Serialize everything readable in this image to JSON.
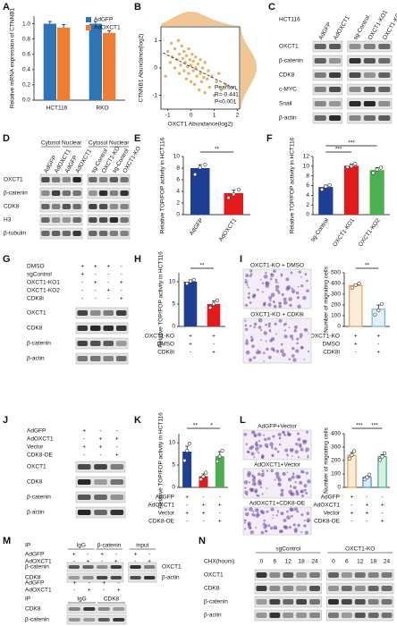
{
  "chart_data": [
    {
      "type": "bar",
      "panel": "A",
      "ylabel": "Relative mRNA expression of CTNNB1",
      "categories": [
        "HCT116",
        "RKO"
      ],
      "series": [
        {
          "name": "AdGFP",
          "color": "#2e75b6",
          "values": [
            1.0,
            1.0
          ],
          "errors": [
            0.03,
            0.03
          ]
        },
        {
          "name": "AdOXCT1",
          "color": "#ed7d31",
          "values": [
            0.95,
            0.88
          ],
          "errors": [
            0.04,
            0.03
          ]
        }
      ],
      "ylim": [
        0,
        1.1
      ],
      "yticks": [
        {
          "value": 0,
          "label": "0.0"
        },
        {
          "value": 0.2,
          "label": "0.2"
        },
        {
          "value": 0.4,
          "label": "0.4"
        },
        {
          "value": 0.6,
          "label": "0.6"
        },
        {
          "value": 0.8,
          "label": "0.8"
        },
        {
          "value": 1,
          "label": "1.0"
        }
      ]
    },
    {
      "type": "scatter",
      "panel": "B",
      "xlabel": "OXCT1 Abundance(log2)",
      "ylabel": "CTNNB1 Abundance(log2)",
      "color": "#e9a04a",
      "x": [
        -1.0,
        -0.9,
        -0.85,
        -0.8,
        -0.7,
        -0.7,
        -0.6,
        -0.55,
        -0.5,
        -0.5,
        -0.45,
        -0.4,
        -0.35,
        -0.3,
        -0.3,
        -0.25,
        -0.2,
        -0.2,
        -0.15,
        -0.1,
        -0.1,
        -0.05,
        0.0,
        0.0,
        0.05,
        0.1,
        0.1,
        0.15,
        0.2,
        0.2,
        0.25,
        0.3,
        0.35,
        0.4,
        0.4,
        0.45,
        0.5,
        0.55,
        0.6,
        0.6,
        0.7,
        0.75,
        0.8,
        0.9,
        1.0,
        1.1,
        1.2,
        1.3,
        1.5,
        -1.1
      ],
      "y": [
        0.6,
        0.2,
        0.9,
        0.4,
        0.0,
        0.7,
        0.3,
        1.0,
        -0.2,
        0.5,
        0.1,
        0.8,
        0.35,
        -0.1,
        0.6,
        0.2,
        -0.4,
        0.45,
        0.05,
        0.7,
        -0.2,
        0.3,
        -0.5,
        0.1,
        0.5,
        -0.1,
        0.25,
        -0.6,
        0.0,
        0.4,
        -0.3,
        0.15,
        -0.8,
        -0.2,
        0.3,
        -0.5,
        0.0,
        -0.35,
        -0.9,
        0.2,
        -0.4,
        -0.1,
        -0.7,
        -0.3,
        -1.0,
        -0.5,
        -0.2,
        -0.8,
        -0.6,
        -0.3
      ],
      "fit": {
        "x": [
          -1.2,
          2.0
        ],
        "y": [
          0.55,
          -0.8
        ]
      },
      "xlim": [
        -1.3,
        2.1
      ],
      "ylim": [
        -1.5,
        1.5
      ],
      "xticks": [
        -1,
        0,
        1,
        2
      ],
      "yticks": [
        -1,
        0,
        1
      ],
      "annotations": [
        "Pearson",
        "R=-0.441",
        "P<0.001"
      ]
    },
    {
      "type": "bar",
      "panel": "E",
      "ylabel": "Relative TOP/FOP activity in HCT116",
      "categories": [
        "AdGFP",
        "AdOXCT1"
      ],
      "values": [
        8.0,
        3.7
      ],
      "errors": [
        0.6,
        0.5
      ],
      "points": [
        [
          6.9,
          8.1,
          8.6
        ],
        [
          2.9,
          3.5,
          4.3
        ]
      ],
      "colors": [
        "#1f3f95",
        "#e31a1c"
      ],
      "ylim": [
        0,
        10
      ],
      "yticks": [
        0,
        2,
        4,
        6,
        8,
        10
      ],
      "significance": [
        "**"
      ]
    },
    {
      "type": "bar",
      "panel": "F",
      "ylabel": "Relative TOP/FOP activity in HCT116",
      "categories": [
        "sg-Control",
        "OXCT1-KO1",
        "OXCT1-KO2"
      ],
      "values": [
        5.7,
        10.1,
        9.2
      ],
      "errors": [
        0.4,
        0.3,
        0.5
      ],
      "points": [
        [
          5.2,
          5.8,
          6.1
        ],
        [
          9.8,
          10.0,
          10.5
        ],
        [
          8.6,
          9.3,
          9.7
        ]
      ],
      "colors": [
        "#1f3f95",
        "#e31a1c",
        "#4caf50"
      ],
      "ylim": [
        0,
        12
      ],
      "yticks": [
        0,
        2,
        4,
        6,
        8,
        10,
        12
      ],
      "significance": [
        "***",
        "***"
      ]
    },
    {
      "type": "bar",
      "panel": "H",
      "ylabel": "Relative TOP/FOP activity in HCT116",
      "values": [
        10.0,
        5.0
      ],
      "errors": [
        0.4,
        0.7
      ],
      "points": [
        [
          9.6,
          10.1,
          10.4
        ],
        [
          4.2,
          5.0,
          5.8
        ]
      ],
      "colors": [
        "#1f3f95",
        "#e31a1c"
      ],
      "ylim": [
        0,
        12
      ],
      "yticks": [
        0,
        5,
        10
      ],
      "significance": [
        "**"
      ],
      "conditions": [
        {
          "name": "OXCT1-KO",
          "signs": [
            "+",
            "+"
          ]
        },
        {
          "name": "DMSO",
          "signs": [
            "+",
            "-"
          ]
        },
        {
          "name": "CDK8i",
          "signs": [
            "-",
            "+"
          ]
        }
      ]
    },
    {
      "type": "bar",
      "ylabel": "Number of migrating cells",
      "fill_style": "outline",
      "values": [
        380,
        160
      ],
      "errors": [
        15,
        40
      ],
      "points": [
        [
          360,
          385,
          400
        ],
        [
          110,
          150,
          210
        ]
      ],
      "colors": [
        "#f0a04b",
        "#6fb7e0"
      ],
      "ylim": [
        0,
        500
      ],
      "yticks": [
        0,
        100,
        200,
        300,
        400,
        500
      ],
      "significance": [
        "**"
      ],
      "conditions": [
        {
          "name": "OXCT1-KO",
          "signs": [
            "+",
            "+"
          ]
        },
        {
          "name": "DMSO",
          "signs": [
            "+",
            "-"
          ]
        },
        {
          "name": "CDK8i",
          "signs": [
            "-",
            "+"
          ]
        }
      ]
    },
    {
      "type": "bar",
      "panel": "K",
      "ylabel": "Relative TOP/FOP activity in HCT116",
      "values": [
        8.0,
        2.5,
        7.0
      ],
      "errors": [
        1.2,
        0.5,
        1.0
      ],
      "points": [
        [
          6.0,
          8.2,
          9.8
        ],
        [
          1.8,
          2.4,
          3.3
        ],
        [
          5.8,
          6.9,
          8.2
        ]
      ],
      "colors": [
        "#1f3f95",
        "#e31a1c",
        "#4caf50"
      ],
      "ylim": [
        0,
        12
      ],
      "yticks": [
        0,
        5,
        10
      ],
      "significance": [
        "**",
        "*"
      ],
      "conditions": [
        {
          "name": "AdGFP",
          "signs": [
            "+",
            "-",
            "-"
          ]
        },
        {
          "name": "AdOXCT1",
          "signs": [
            "-",
            "+",
            "+"
          ]
        },
        {
          "name": "Vector",
          "signs": [
            "+",
            "+",
            "-"
          ]
        },
        {
          "name": "CDK8-OE",
          "signs": [
            "-",
            "-",
            "+"
          ]
        }
      ]
    },
    {
      "type": "bar",
      "ylabel": "Number of migrating cells",
      "fill_style": "outline",
      "values": [
        240,
        75,
        230
      ],
      "errors": [
        20,
        10,
        15
      ],
      "points": [
        [
          215,
          240,
          270
        ],
        [
          60,
          75,
          95
        ],
        [
          205,
          230,
          255
        ]
      ],
      "colors": [
        "#f0a04b",
        "#4a90d9",
        "#3cb371"
      ],
      "ylim": [
        0,
        400
      ],
      "yticks": [
        0,
        100,
        200,
        300,
        400
      ],
      "significance": [
        "***",
        "***"
      ],
      "conditions": [
        {
          "name": "AdGFP",
          "signs": [
            "+",
            "-",
            "-"
          ]
        },
        {
          "name": "AdOXCT1",
          "signs": [
            "-",
            "+",
            "+"
          ]
        },
        {
          "name": "Vector",
          "signs": [
            "+",
            "+",
            "-"
          ]
        },
        {
          "name": "CDK8-OE",
          "signs": [
            "-",
            "-",
            "+"
          ]
        }
      ]
    }
  ],
  "blots": [
    {
      "panel": "C",
      "title": "HCT116",
      "lanes": [
        "AdGFP",
        "AdOXCT1",
        "sg-Control",
        "OXCT1-KO1",
        "OXCT1-KO2"
      ],
      "rows": [
        "OXCT1",
        "β-catenin",
        "CDK8",
        "c-MYC",
        "Snail",
        "β-actin"
      ]
    },
    {
      "panel": "D",
      "groups": [
        "Cytosol",
        "Nuclear",
        "Cytosol",
        "Nuclear"
      ],
      "lanes": [
        "AdGFP",
        "AdOXCT1",
        "AdGFP",
        "AdOXCT1",
        "sg-Control",
        "OXCT1-KO",
        "sg-Control",
        "OXCT1-KO"
      ],
      "rows": [
        "OXCT1",
        "β-catenin",
        "CDK8",
        "H3",
        "β-tubulin"
      ]
    },
    {
      "panel": "G",
      "conditions": [
        {
          "name": "DMSO",
          "signs": [
            "+",
            "+",
            "+",
            "-"
          ]
        },
        {
          "name": "sgControl",
          "signs": [
            "+",
            "-",
            "-",
            "-"
          ]
        },
        {
          "name": "OXCT1-KO1",
          "signs": [
            "-",
            "+",
            "-",
            "+"
          ]
        },
        {
          "name": "OXCT1-KO2",
          "signs": [
            "-",
            "-",
            "+",
            "-"
          ]
        },
        {
          "name": "CDK8i",
          "signs": [
            "-",
            "-",
            "-",
            "+"
          ]
        }
      ],
      "rows": [
        "OXCT1",
        "CDK8",
        "β-catenin",
        "β-actin"
      ]
    },
    {
      "panel": "J",
      "conditions": [
        {
          "name": "AdGFP",
          "signs": [
            "+",
            "-",
            "-"
          ]
        },
        {
          "name": "AdOXCT1",
          "signs": [
            "-",
            "+",
            "+"
          ]
        },
        {
          "name": "Vector",
          "signs": [
            "+",
            "+",
            "-"
          ]
        },
        {
          "name": "CDK8-OE",
          "signs": [
            "-",
            "-",
            "+"
          ]
        }
      ],
      "rows": [
        "OXCT1",
        "CDK8",
        "β-catenin",
        "β-actin"
      ]
    },
    {
      "panel": "M",
      "header": "IP",
      "groups": [
        "IgG",
        "β-catenin",
        "input"
      ],
      "conditions": [
        {
          "name": "AdGFP",
          "signs": [
            "+",
            "-",
            "+",
            "-",
            "+",
            "-"
          ]
        },
        {
          "name": "AdOXCT1",
          "signs": [
            "-",
            "+",
            "-",
            "+",
            "-",
            "+"
          ]
        }
      ],
      "rows": [
        "β-catenin",
        "CDK8"
      ],
      "right_rows": [
        "OXCT1",
        "β-actin"
      ]
    },
    {
      "header": "IP",
      "groups": [
        "IgG",
        "CDK8"
      ],
      "conditions": [
        {
          "name": "AdGFP",
          "signs": [
            "+",
            "-",
            "+",
            "-"
          ]
        },
        {
          "name": "AdOXCT1",
          "signs": [
            "-",
            "+",
            "-",
            "+"
          ]
        }
      ],
      "rows": [
        "CDK8",
        "β-catenin"
      ]
    },
    {
      "panel": "N",
      "title": "CHX(hours)",
      "groups": [
        "sgControl",
        "OXCT1-KO"
      ],
      "lanes": [
        "0",
        "6",
        "12",
        "18",
        "24",
        "0",
        "6",
        "12",
        "18",
        "24"
      ],
      "rows": [
        "OXCT1",
        "CDK8",
        "β-catenin",
        "β-actin"
      ]
    }
  ],
  "images": [
    {
      "panel": "I",
      "captions": [
        "OXCT1-KO + DMSO",
        "OXCT1-KO + CDK8i"
      ]
    },
    {
      "panel": "L",
      "captions": [
        "AdGFP+Vector",
        "AdOXCT1+Vector",
        "AdOXCT1+CDK8-OE"
      ]
    }
  ]
}
